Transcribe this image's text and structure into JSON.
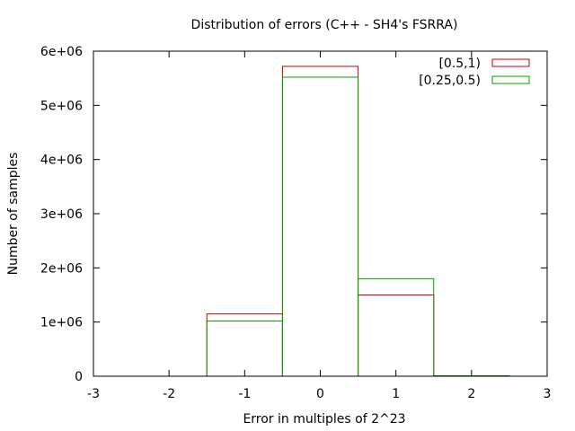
{
  "chart_data": {
    "type": "bar",
    "title": "Distribution of errors (C++ - SH4's FSRRA)",
    "xlabel": "Error in multiples of 2^23",
    "ylabel": "Number of samples",
    "xlim": [
      -3,
      3
    ],
    "ylim": [
      0,
      6000000
    ],
    "x_ticks": [
      -3,
      -2,
      -1,
      0,
      1,
      2,
      3
    ],
    "x_tick_labels": [
      "-3",
      "-2",
      "-1",
      "0",
      "1",
      "2",
      "3"
    ],
    "y_ticks": [
      0,
      1000000,
      2000000,
      3000000,
      4000000,
      5000000,
      6000000
    ],
    "y_tick_labels": [
      "0",
      "1e+06",
      "2e+06",
      "3e+06",
      "4e+06",
      "5e+06",
      "6e+06"
    ],
    "grid": false,
    "legend_position": "top-right",
    "bin_width": 1,
    "series": [
      {
        "name": "[0.5,1)",
        "color": "#cc0000",
        "bins": [
          {
            "x": -1,
            "value": 1150000
          },
          {
            "x": 0,
            "value": 5720000
          },
          {
            "x": 1,
            "value": 1500000
          },
          {
            "x": 2,
            "value": 5000
          }
        ]
      },
      {
        "name": "[0.25,0.5)",
        "color": "#00a000",
        "bins": [
          {
            "x": -1,
            "value": 1020000
          },
          {
            "x": 0,
            "value": 5520000
          },
          {
            "x": 1,
            "value": 1800000
          },
          {
            "x": 2,
            "value": 8000
          }
        ]
      }
    ]
  }
}
